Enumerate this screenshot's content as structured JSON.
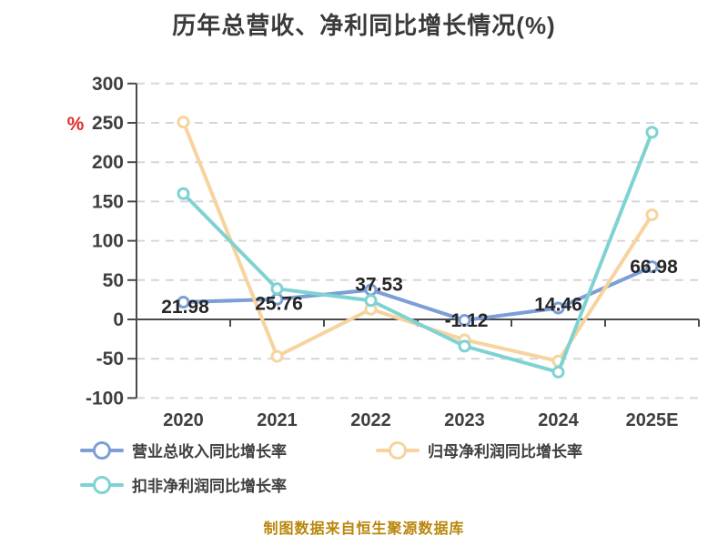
{
  "chart_data": {
    "type": "line",
    "title": "历年总营收、净利同比增长情况(%)",
    "y_unit": "%",
    "categories": [
      "2020",
      "2021",
      "2022",
      "2023",
      "2024",
      "2025E"
    ],
    "series": [
      {
        "name": "营业总收入同比增长率",
        "color": "#7d9ed6",
        "values": [
          21.98,
          25.76,
          37.53,
          -1.12,
          14.46,
          66.98
        ],
        "data_labels": [
          "21.98",
          "25.76",
          "37.53",
          "-1.12",
          "14.46",
          "66.98"
        ]
      },
      {
        "name": "归母净利润同比增长率",
        "color": "#f7d39e",
        "values": [
          251,
          -47,
          13,
          -26,
          -53,
          133
        ]
      },
      {
        "name": "扣非净利润同比增长率",
        "color": "#7ed3d2",
        "values": [
          160,
          39,
          24,
          -34,
          -67,
          238
        ]
      }
    ],
    "ylim": [
      -100,
      300
    ],
    "yticks": [
      300,
      250,
      200,
      150,
      100,
      50,
      0,
      -50,
      -100
    ],
    "grid": "horizontal-dashed",
    "legend_position": "bottom-left"
  },
  "footer": {
    "source_note": "制图数据来自恒生聚源数据库"
  },
  "colors": {
    "grid": "#d6d6d6",
    "axis": "#4a4a4a",
    "tick_text": "#3f3f3f",
    "data_label_text": "#262626",
    "unit_percent": "#e02a2a",
    "footer_text": "#b8860b",
    "title_text": "#3a3a3a",
    "point_fill": "#ffffff"
  }
}
